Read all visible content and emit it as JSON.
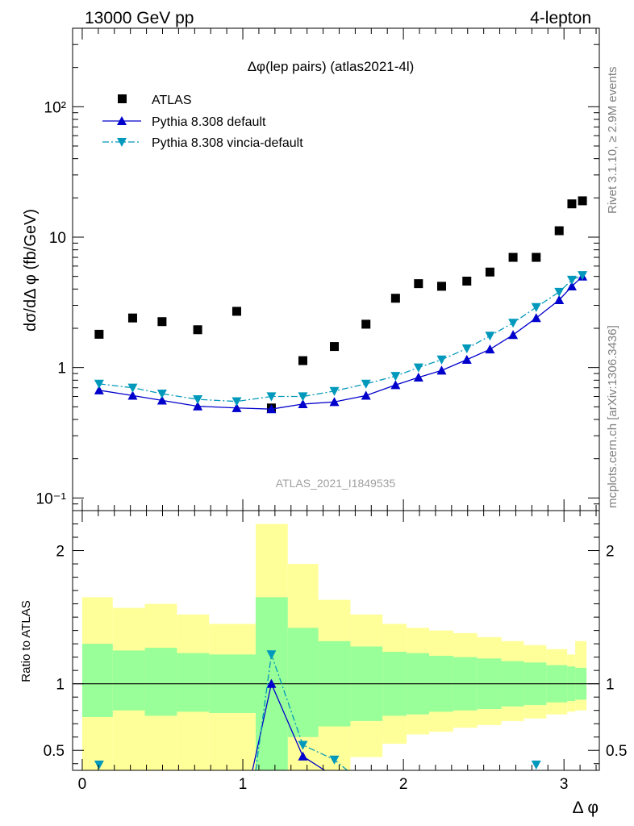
{
  "header": {
    "left": "13000 GeV pp",
    "right": "4-lepton"
  },
  "side_labels": {
    "top": "Rivet 3.1.10, ≥ 2.9M events",
    "bottom": "mcplots.cern.ch [arXiv:1306.3436]"
  },
  "chart_data": [
    {
      "type": "scatter",
      "title": "Δφ(lep pairs) (atlas2021-4l)",
      "watermark": "ATLAS_2021_I1849535",
      "xlabel": "Δ φ",
      "ylabel": "dσ/dΔ φ (fb/GeV)",
      "xlim": [
        -0.06,
        3.22
      ],
      "ylim": [
        0.08,
        400
      ],
      "yscale": "log",
      "yticks": [
        {
          "v": 0.1,
          "label": "10⁻¹"
        },
        {
          "v": 1,
          "label": "1"
        },
        {
          "v": 10,
          "label": "10"
        },
        {
          "v": 100,
          "label": "10²"
        }
      ],
      "legend_position": "top-left",
      "series": [
        {
          "name": "ATLAS",
          "marker": "square",
          "color": "#000000",
          "x": [
            0.105,
            0.314,
            0.497,
            0.719,
            0.962,
            1.178,
            1.374,
            1.57,
            1.767,
            1.951,
            2.094,
            2.238,
            2.395,
            2.539,
            2.683,
            2.827,
            2.97,
            3.049,
            3.115
          ],
          "y": [
            1.8,
            2.4,
            2.25,
            1.95,
            2.7,
            0.49,
            1.13,
            1.45,
            2.15,
            3.4,
            4.4,
            4.2,
            4.6,
            5.4,
            7.0,
            7.0,
            11.2,
            18.0,
            19.0
          ]
        },
        {
          "name": "Pythia 8.308 default",
          "marker": "triangle-up",
          "color": "#0000cc",
          "line": "solid",
          "x": [
            0.105,
            0.314,
            0.497,
            0.719,
            0.962,
            1.178,
            1.374,
            1.57,
            1.767,
            1.951,
            2.094,
            2.238,
            2.395,
            2.539,
            2.683,
            2.827,
            2.97,
            3.049,
            3.115
          ],
          "y": [
            0.67,
            0.61,
            0.56,
            0.505,
            0.49,
            0.48,
            0.525,
            0.545,
            0.61,
            0.735,
            0.84,
            0.95,
            1.15,
            1.38,
            1.78,
            2.4,
            3.3,
            4.2,
            5.0
          ]
        },
        {
          "name": "Pythia 8.308 vincia-default",
          "marker": "triangle-down",
          "color": "#0099bb",
          "line": "dashdot",
          "x": [
            0.105,
            0.314,
            0.497,
            0.719,
            0.962,
            1.178,
            1.374,
            1.57,
            1.767,
            1.951,
            2.094,
            2.238,
            2.395,
            2.539,
            2.683,
            2.827,
            2.97,
            3.049,
            3.115
          ],
          "y": [
            0.75,
            0.7,
            0.63,
            0.57,
            0.55,
            0.6,
            0.6,
            0.66,
            0.75,
            0.86,
            1.0,
            1.15,
            1.4,
            1.75,
            2.2,
            2.9,
            3.8,
            4.7,
            5.1
          ]
        }
      ]
    },
    {
      "type": "line",
      "ylabel": "Ratio to ATLAS",
      "xlabel": "Δ φ",
      "xlim": [
        -0.06,
        3.22
      ],
      "ylim": [
        0.35,
        2.3
      ],
      "xticks": [
        0,
        1,
        2,
        3
      ],
      "yticks": [
        0.5,
        1,
        2
      ],
      "reference_line": 1,
      "band_edges": [
        0,
        0.19,
        0.39,
        0.59,
        0.79,
        1.08,
        1.28,
        1.47,
        1.67,
        1.87,
        2.02,
        2.16,
        2.31,
        2.46,
        2.61,
        2.75,
        2.89,
        3.02,
        3.07,
        3.14
      ],
      "band_outer": {
        "color": "#ffff99",
        "lower": [
          0.35,
          0.35,
          0.35,
          0.35,
          0.35,
          0.35,
          0.35,
          0.35,
          0.45,
          0.55,
          0.62,
          0.64,
          0.67,
          0.69,
          0.72,
          0.74,
          0.77,
          0.79,
          0.8
        ],
        "upper": [
          1.65,
          1.57,
          1.6,
          1.52,
          1.45,
          2.2,
          1.9,
          1.63,
          1.52,
          1.45,
          1.42,
          1.4,
          1.38,
          1.35,
          1.32,
          1.29,
          1.26,
          1.22,
          1.32
        ]
      },
      "band_inner": {
        "color": "#99ff99",
        "lower": [
          0.75,
          0.8,
          0.76,
          0.79,
          0.78,
          0.35,
          0.6,
          0.68,
          0.72,
          0.76,
          0.77,
          0.79,
          0.8,
          0.81,
          0.83,
          0.84,
          0.86,
          0.87,
          0.88
        ],
        "upper": [
          1.3,
          1.25,
          1.27,
          1.23,
          1.22,
          1.65,
          1.42,
          1.32,
          1.28,
          1.24,
          1.23,
          1.21,
          1.2,
          1.19,
          1.17,
          1.16,
          1.14,
          1.13,
          1.12
        ]
      },
      "series": [
        {
          "name": "Pythia 8.308 default",
          "color": "#0000cc",
          "marker": "triangle-up",
          "line": "solid",
          "x": [
            1.06,
            1.178,
            1.374,
            1.51
          ],
          "y": [
            0.35,
            1.0,
            0.455,
            0.35
          ],
          "marker_x": [
            1.178,
            1.374
          ]
        },
        {
          "name": "Pythia 8.308 vincia-default",
          "color": "#0099bb",
          "marker": "triangle-down",
          "line": "dashdot",
          "x": [
            1.08,
            1.178,
            1.374,
            1.57,
            1.65
          ],
          "y": [
            0.35,
            1.22,
            0.54,
            0.43,
            0.35
          ],
          "marker_x": [
            1.178,
            1.374,
            1.57
          ],
          "edge_markers_x": [
            0.105,
            2.827
          ]
        }
      ]
    }
  ]
}
